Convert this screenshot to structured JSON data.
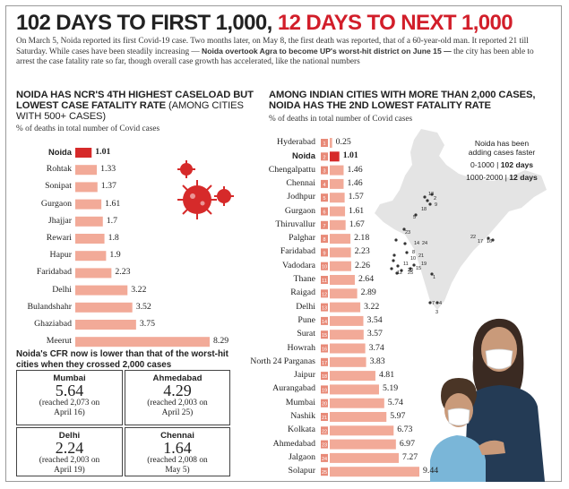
{
  "headline": {
    "part1": "102 DAYS TO FIRST 1,000,",
    "part2": "12 DAYS TO NEXT 1,000"
  },
  "intro": {
    "text1": "On March 5, Noida reported its first Covid-19 case. Two months later, on May 8, the first death was reported, that of a 60-year-old man. It reported 21 till Saturday. While cases have been steadily increasing —",
    "bold": "Noida overtook Agra to become UP's worst-hit district on June 15 —",
    "text2": "the city has been able to arrest the case fatality rate so far, though overall case growth has accelerated, like the national numbers"
  },
  "left_section": {
    "title": "NOIDA HAS NCR'S 4TH HIGHEST CASELOAD BUT LOWEST CASE FATALITY RATE",
    "title_suffix": "(AMONG CITIES WITH 500+ CASES)",
    "subtitle": "% of deaths in total number of Covid cases"
  },
  "right_section": {
    "title": "AMONG INDIAN CITIES WITH MORE THAN 2,000 CASES, NOIDA HAS THE 2ND LOWEST FATALITY RATE",
    "subtitle": "% of deaths in total number of Covid cases"
  },
  "map_note": {
    "line1": "Noida has been",
    "line2": "adding cases faster",
    "range1": "0-1000",
    "days1": "102 days",
    "range2": "1000-2000",
    "days2": "12 days"
  },
  "cfr": {
    "title": "Noida's CFR now is lower than that of the worst-hit cities when they crossed 2,000 cases",
    "cities": [
      {
        "name": "Mumbai",
        "value": "5.64",
        "detail1": "(reached 2,073 on",
        "detail2": "April 16)"
      },
      {
        "name": "Ahmedabad",
        "value": "4.29",
        "detail1": "(reached 2,003 on",
        "detail2": "April 25)"
      },
      {
        "name": "Delhi",
        "value": "2.24",
        "detail1": "(reached 2,003 on",
        "detail2": "April 19)"
      },
      {
        "name": "Chennai",
        "value": "1.64",
        "detail1": "(reached 2,008 on",
        "detail2": "May 5)"
      }
    ]
  },
  "colors": {
    "bar": "#f2aa98",
    "highlight": "#d62a2a",
    "rank_box": "#e88a78"
  },
  "chart_data": [
    {
      "type": "bar",
      "orientation": "horizontal",
      "title": "NOIDA HAS NCR'S 4TH HIGHEST CASELOAD BUT LOWEST CASE FATALITY RATE (AMONG CITIES WITH 500+ CASES)",
      "subtitle": "% of deaths in total number of Covid cases",
      "categories": [
        "Noida",
        "Rohtak",
        "Sonipat",
        "Gurgaon",
        "Jhajjar",
        "Rewari",
        "Hapur",
        "Faridabad",
        "Delhi",
        "Bulandshahr",
        "Ghaziabad",
        "Meerut"
      ],
      "values": [
        1.01,
        1.33,
        1.37,
        1.61,
        1.7,
        1.8,
        1.9,
        2.23,
        3.22,
        3.52,
        3.75,
        8.29
      ],
      "highlight": "Noida"
    },
    {
      "type": "bar",
      "orientation": "horizontal",
      "title": "AMONG INDIAN CITIES WITH MORE THAN 2,000 CASES, NOIDA HAS THE 2ND LOWEST FATALITY RATE",
      "subtitle": "% of deaths in total number of Covid cases",
      "categories": [
        "Hyderabad",
        "Noida",
        "Chengalpattu",
        "Chennai",
        "Jodhpur",
        "Gurgaon",
        "Thiruvallur",
        "Palghar",
        "Faridabad",
        "Vadodara",
        "Thane",
        "Raigad",
        "Delhi",
        "Pune",
        "Surat",
        "Howrah",
        "North 24 Parganas",
        "Jaipur",
        "Aurangabad",
        "Mumbai",
        "Nashik",
        "Kolkata",
        "Ahmedabad",
        "Jalgaon",
        "Solapur"
      ],
      "values": [
        0.25,
        1.01,
        1.46,
        1.46,
        1.57,
        1.61,
        1.67,
        2.18,
        2.23,
        2.26,
        2.64,
        2.89,
        3.22,
        3.54,
        3.57,
        3.74,
        3.83,
        4.81,
        5.19,
        5.74,
        5.97,
        6.73,
        6.97,
        7.27,
        9.44
      ],
      "ranks": [
        "1",
        "2",
        "3",
        "4",
        "5",
        "6",
        "7",
        "8",
        "9",
        "10",
        "11",
        "12",
        "13",
        "14",
        "15",
        "16",
        "17",
        "18",
        "19",
        "20",
        "21",
        "22",
        "23",
        "24",
        "25"
      ],
      "highlight": "Noida"
    }
  ]
}
